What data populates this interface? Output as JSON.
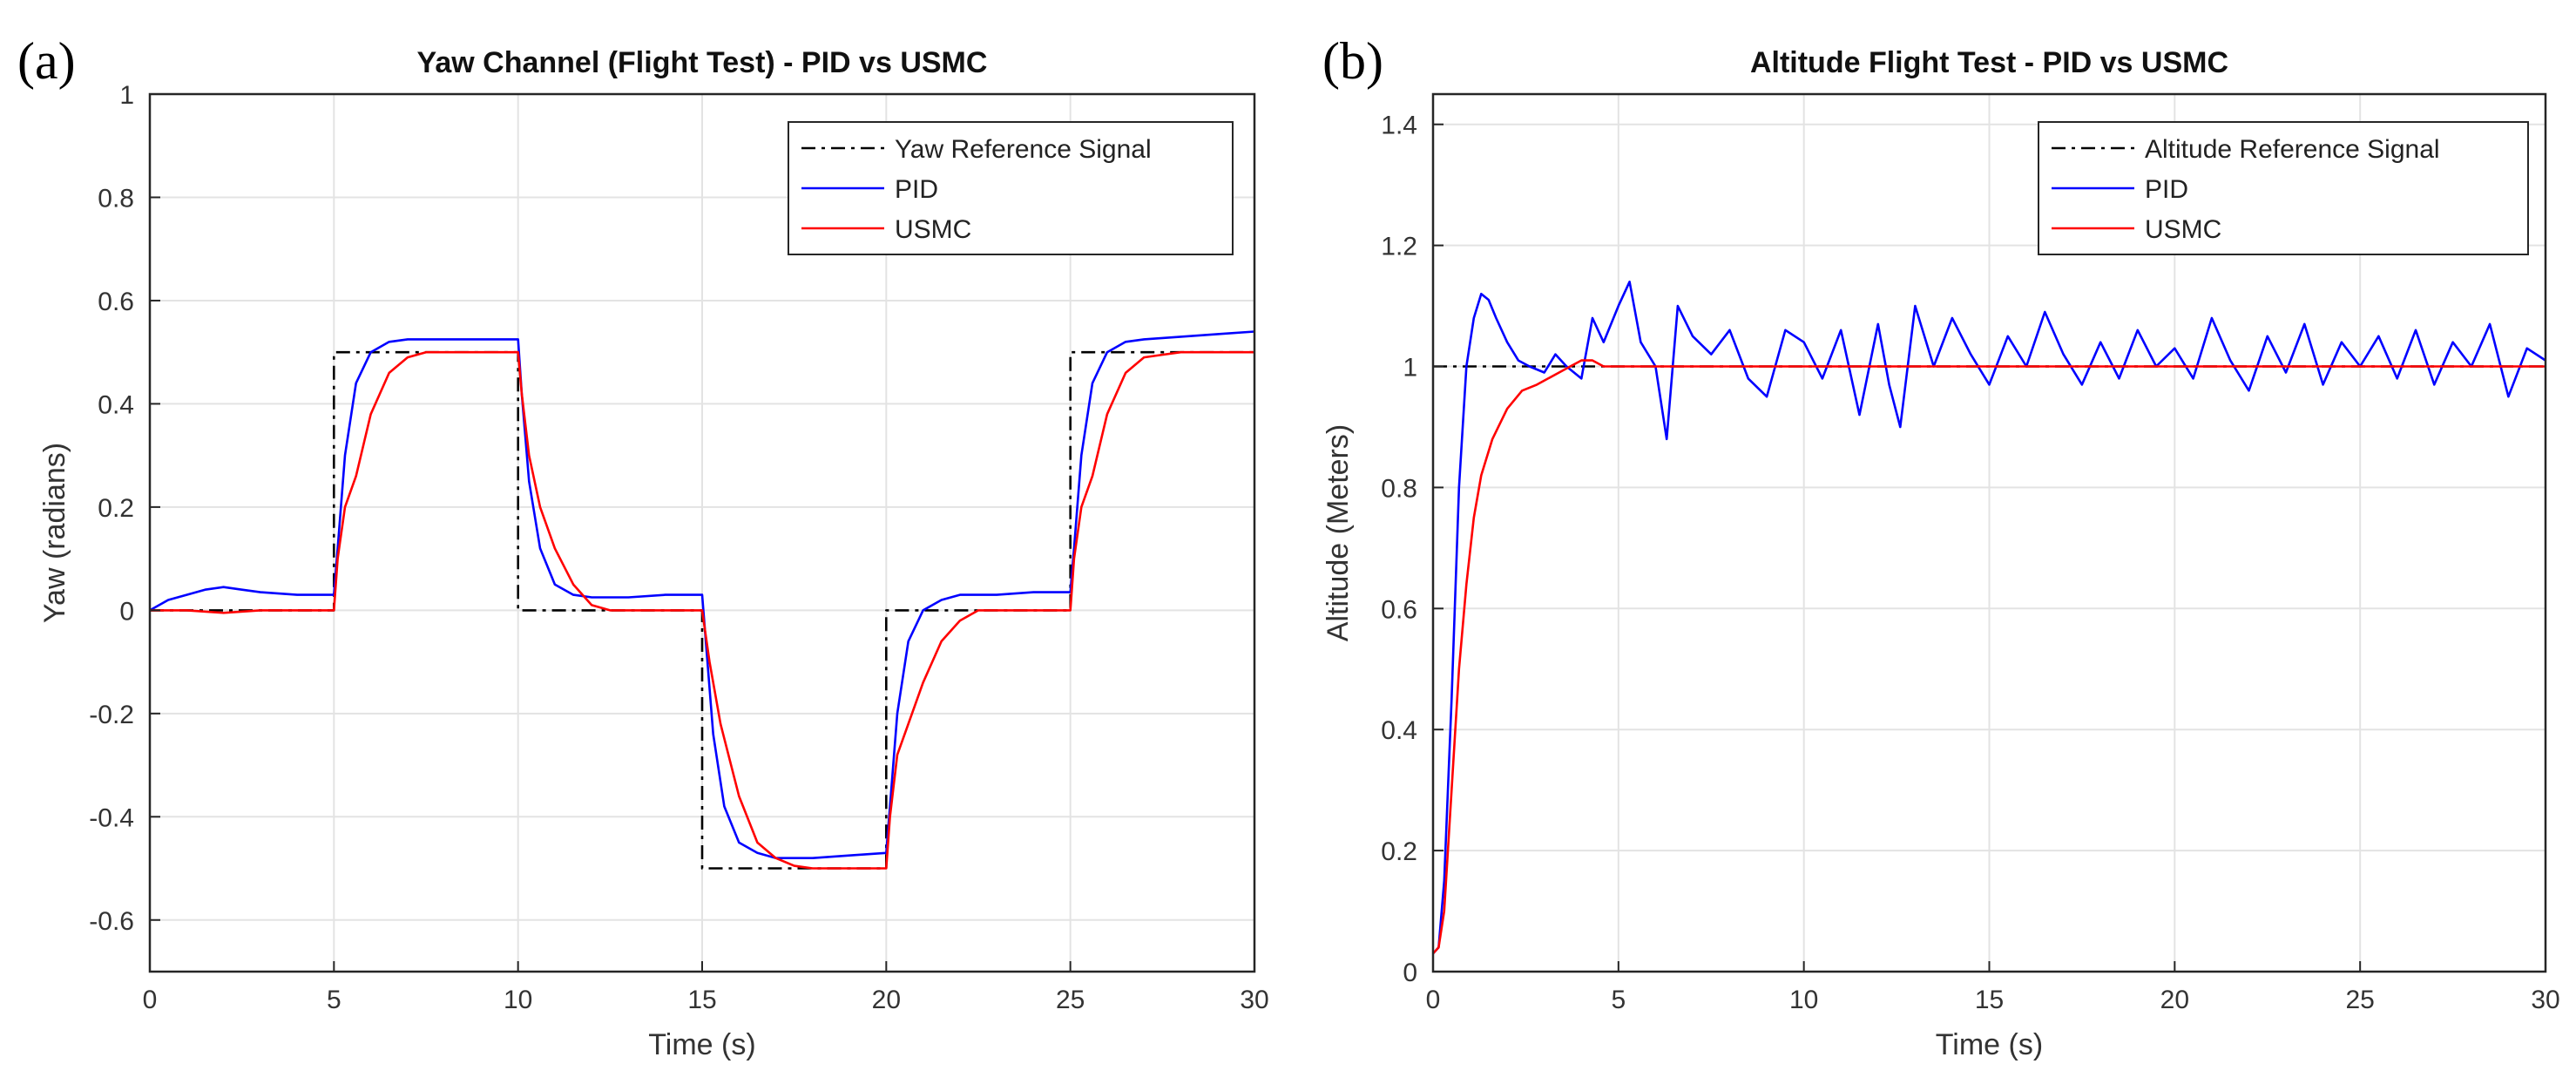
{
  "figure": {
    "panels": [
      "(a)",
      "(b)"
    ]
  },
  "chart_data": [
    {
      "type": "line",
      "title": "Yaw Channel (Flight Test) - PID vs USMC",
      "xlabel": "Time (s)",
      "ylabel": "Yaw (radians)",
      "xlim": [
        0,
        30
      ],
      "ylim": [
        -0.7,
        1
      ],
      "xticks": [
        0,
        5,
        10,
        15,
        20,
        25,
        30
      ],
      "yticks": [
        -0.6,
        -0.4,
        -0.2,
        0,
        0.2,
        0.4,
        0.6,
        0.8,
        1
      ],
      "ytick_labels": [
        "-0.6",
        "-0.4",
        "-0.2",
        "0",
        "0.2",
        "0.4",
        "0.6",
        "0.8",
        "1"
      ],
      "grid": true,
      "legend_position": "top-right",
      "series": [
        {
          "name": "Yaw Reference Signal",
          "color": "#000000",
          "style": "dashdot",
          "x": [
            0,
            5,
            5,
            10,
            10,
            15,
            15,
            20,
            20,
            25,
            25,
            30
          ],
          "y": [
            0,
            0,
            0.5,
            0.5,
            0,
            0,
            -0.5,
            -0.5,
            0,
            0,
            0.5,
            0.5
          ]
        },
        {
          "name": "PID",
          "color": "#0000ff",
          "style": "solid",
          "x": [
            0,
            0.5,
            1,
            1.5,
            2,
            2.5,
            3,
            4,
            5,
            5.1,
            5.3,
            5.6,
            6,
            6.5,
            7,
            8,
            9,
            10,
            10.1,
            10.3,
            10.6,
            11,
            11.5,
            12,
            13,
            14,
            15,
            15.1,
            15.3,
            15.6,
            16,
            16.5,
            17,
            18,
            19,
            20,
            20.1,
            20.3,
            20.6,
            21,
            21.5,
            22,
            23,
            24,
            25,
            25.1,
            25.3,
            25.6,
            26,
            26.5,
            27,
            28,
            29,
            30
          ],
          "y": [
            0,
            0.02,
            0.03,
            0.04,
            0.045,
            0.04,
            0.035,
            0.03,
            0.03,
            0.12,
            0.3,
            0.44,
            0.5,
            0.52,
            0.525,
            0.525,
            0.525,
            0.525,
            0.42,
            0.25,
            0.12,
            0.05,
            0.03,
            0.025,
            0.025,
            0.03,
            0.03,
            -0.06,
            -0.24,
            -0.38,
            -0.45,
            -0.47,
            -0.48,
            -0.48,
            -0.475,
            -0.47,
            -0.38,
            -0.2,
            -0.06,
            0,
            0.02,
            0.03,
            0.03,
            0.035,
            0.035,
            0.12,
            0.3,
            0.44,
            0.5,
            0.52,
            0.525,
            0.53,
            0.535,
            0.54
          ]
        },
        {
          "name": "USMC",
          "color": "#ff0000",
          "style": "solid",
          "x": [
            0,
            1,
            2,
            3,
            4,
            5,
            5.1,
            5.3,
            5.6,
            6,
            6.5,
            7,
            7.5,
            8,
            9,
            10,
            10.1,
            10.3,
            10.6,
            11,
            11.5,
            12,
            12.5,
            13,
            14,
            15,
            15.2,
            15.5,
            16,
            16.5,
            17,
            17.5,
            18,
            19,
            20,
            20.1,
            20.3,
            20.6,
            21,
            21.5,
            22,
            22.5,
            23,
            24,
            25,
            25.1,
            25.3,
            25.6,
            26,
            26.5,
            27,
            27.5,
            28,
            29,
            30
          ],
          "y": [
            0,
            0,
            -0.005,
            0,
            0,
            0,
            0.1,
            0.2,
            0.26,
            0.38,
            0.46,
            0.49,
            0.5,
            0.5,
            0.5,
            0.5,
            0.42,
            0.3,
            0.2,
            0.12,
            0.05,
            0.01,
            0,
            0,
            0,
            0,
            -0.1,
            -0.22,
            -0.36,
            -0.45,
            -0.48,
            -0.495,
            -0.5,
            -0.5,
            -0.5,
            -0.4,
            -0.28,
            -0.22,
            -0.14,
            -0.06,
            -0.02,
            0,
            0,
            0,
            0,
            0.1,
            0.2,
            0.26,
            0.38,
            0.46,
            0.49,
            0.495,
            0.5,
            0.5,
            0.5
          ]
        }
      ]
    },
    {
      "type": "line",
      "title": "Altitude Flight Test - PID vs USMC",
      "xlabel": "Time (s)",
      "ylabel": "Altitude (Meters)",
      "xlim": [
        0,
        30
      ],
      "ylim": [
        0,
        1.45
      ],
      "xticks": [
        0,
        5,
        10,
        15,
        20,
        25,
        30
      ],
      "yticks": [
        0,
        0.2,
        0.4,
        0.6,
        0.8,
        1,
        1.2,
        1.4
      ],
      "ytick_labels": [
        "0",
        "0.2",
        "0.4",
        "0.6",
        "0.8",
        "1",
        "1.2",
        "1.4"
      ],
      "grid": true,
      "legend_position": "top-right",
      "series": [
        {
          "name": "Altitude Reference Signal",
          "color": "#000000",
          "style": "dashdot",
          "x": [
            0,
            3,
            4,
            30
          ],
          "y": [
            1,
            1,
            1,
            1
          ]
        },
        {
          "name": "PID",
          "color": "#0000ff",
          "style": "solid",
          "x": [
            0,
            0.15,
            0.3,
            0.5,
            0.7,
            0.9,
            1.1,
            1.3,
            1.5,
            1.7,
            2,
            2.3,
            2.6,
            3,
            3.3,
            3.6,
            4,
            4.3,
            4.6,
            5,
            5.3,
            5.6,
            6,
            6.3,
            6.6,
            7,
            7.5,
            8,
            8.5,
            9,
            9.5,
            10,
            10.5,
            11,
            11.5,
            12,
            12.3,
            12.6,
            13,
            13.5,
            14,
            14.5,
            15,
            15.5,
            16,
            16.5,
            17,
            17.5,
            18,
            18.5,
            19,
            19.5,
            20,
            20.5,
            21,
            21.5,
            22,
            22.5,
            23,
            23.5,
            24,
            24.5,
            25,
            25.5,
            26,
            26.5,
            27,
            27.5,
            28,
            28.5,
            29,
            29.5,
            30
          ],
          "y": [
            0.03,
            0.04,
            0.15,
            0.45,
            0.8,
            1.0,
            1.08,
            1.12,
            1.11,
            1.08,
            1.04,
            1.01,
            1.0,
            0.99,
            1.02,
            1.0,
            0.98,
            1.08,
            1.04,
            1.1,
            1.14,
            1.04,
            1.0,
            0.88,
            1.1,
            1.05,
            1.02,
            1.06,
            0.98,
            0.95,
            1.06,
            1.04,
            0.98,
            1.06,
            0.92,
            1.07,
            0.97,
            0.9,
            1.1,
            1.0,
            1.08,
            1.02,
            0.97,
            1.05,
            1.0,
            1.09,
            1.02,
            0.97,
            1.04,
            0.98,
            1.06,
            1.0,
            1.03,
            0.98,
            1.08,
            1.01,
            0.96,
            1.05,
            0.99,
            1.07,
            0.97,
            1.04,
            1.0,
            1.05,
            0.98,
            1.06,
            0.97,
            1.04,
            1.0,
            1.07,
            0.95,
            1.03,
            1.01
          ]
        },
        {
          "name": "USMC",
          "color": "#ff0000",
          "style": "solid",
          "x": [
            0,
            0.15,
            0.3,
            0.5,
            0.7,
            0.9,
            1.1,
            1.3,
            1.6,
            2,
            2.4,
            2.8,
            3.1,
            3.4,
            3.7,
            4,
            4.3,
            4.6,
            5,
            6,
            8,
            10,
            12,
            15,
            18,
            20,
            22,
            25,
            28,
            30
          ],
          "y": [
            0.03,
            0.04,
            0.1,
            0.3,
            0.5,
            0.64,
            0.75,
            0.82,
            0.88,
            0.93,
            0.96,
            0.97,
            0.98,
            0.99,
            1.0,
            1.01,
            1.01,
            1.0,
            1.0,
            1.0,
            1.0,
            1.0,
            1.0,
            1.0,
            1.0,
            1.0,
            1.0,
            1.0,
            1.0,
            1.0
          ]
        }
      ]
    }
  ]
}
